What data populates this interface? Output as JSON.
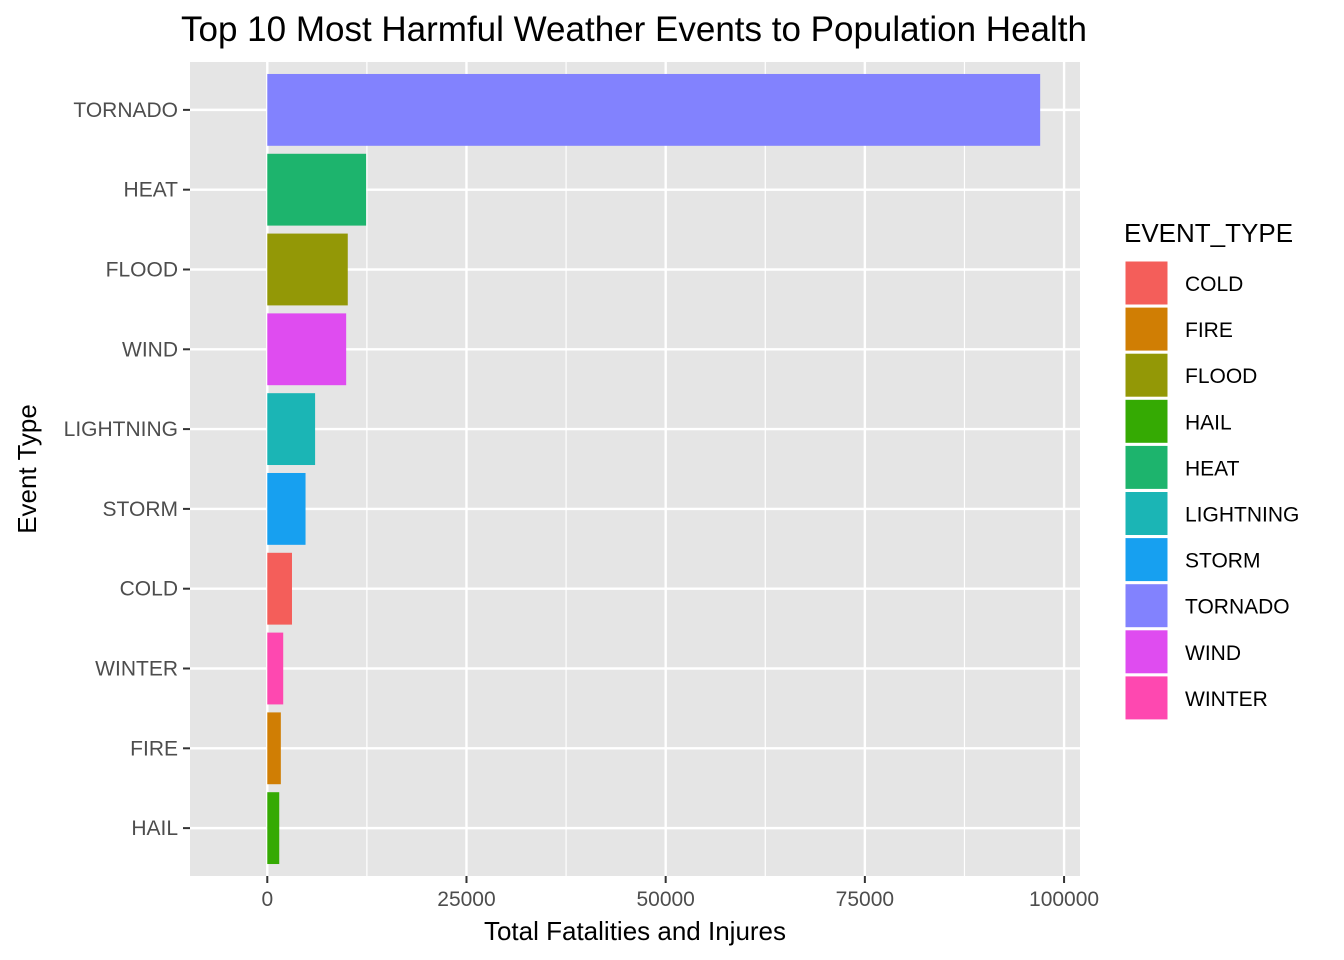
{
  "chart_data": {
    "type": "bar",
    "orientation": "horizontal",
    "title": "Top 10 Most Harmful Weather Events to Population Health",
    "xlabel": "Total Fatalities and Injures",
    "ylabel": "Event Type",
    "xlim": [
      -9700,
      102000
    ],
    "x_ticks": [
      0,
      25000,
      50000,
      75000,
      100000
    ],
    "x_tick_labels": [
      "0",
      "25000",
      "50000",
      "75000",
      "100000"
    ],
    "grid": true,
    "categories": [
      "TORNADO",
      "HEAT",
      "FLOOD",
      "WIND",
      "LIGHTNING",
      "STORM",
      "COLD",
      "WINTER",
      "FIRE",
      "HAIL"
    ],
    "values": [
      97000,
      12400,
      10100,
      9900,
      6000,
      4800,
      3100,
      2000,
      1700,
      1500
    ],
    "colors": [
      "#8282fe",
      "#1db46d",
      "#939806",
      "#df4cf0",
      "#1bb5b5",
      "#17a0f0",
      "#f45e5a",
      "#fe48b0",
      "#d07e04",
      "#35aa03"
    ],
    "legend": {
      "title": "EVENT_TYPE",
      "position": "right",
      "items": [
        {
          "label": "COLD",
          "color": "#f45e5a"
        },
        {
          "label": "FIRE",
          "color": "#d07e04"
        },
        {
          "label": "FLOOD",
          "color": "#939806"
        },
        {
          "label": "HAIL",
          "color": "#35aa03"
        },
        {
          "label": "HEAT",
          "color": "#1db46d"
        },
        {
          "label": "LIGHTNING",
          "color": "#1bb5b5"
        },
        {
          "label": "STORM",
          "color": "#17a0f0"
        },
        {
          "label": "TORNADO",
          "color": "#8282fe"
        },
        {
          "label": "WIND",
          "color": "#df4cf0"
        },
        {
          "label": "WINTER",
          "color": "#fe48b0"
        }
      ]
    },
    "panel_background": "#e5e5e5",
    "grid_color": "#ffffff"
  }
}
